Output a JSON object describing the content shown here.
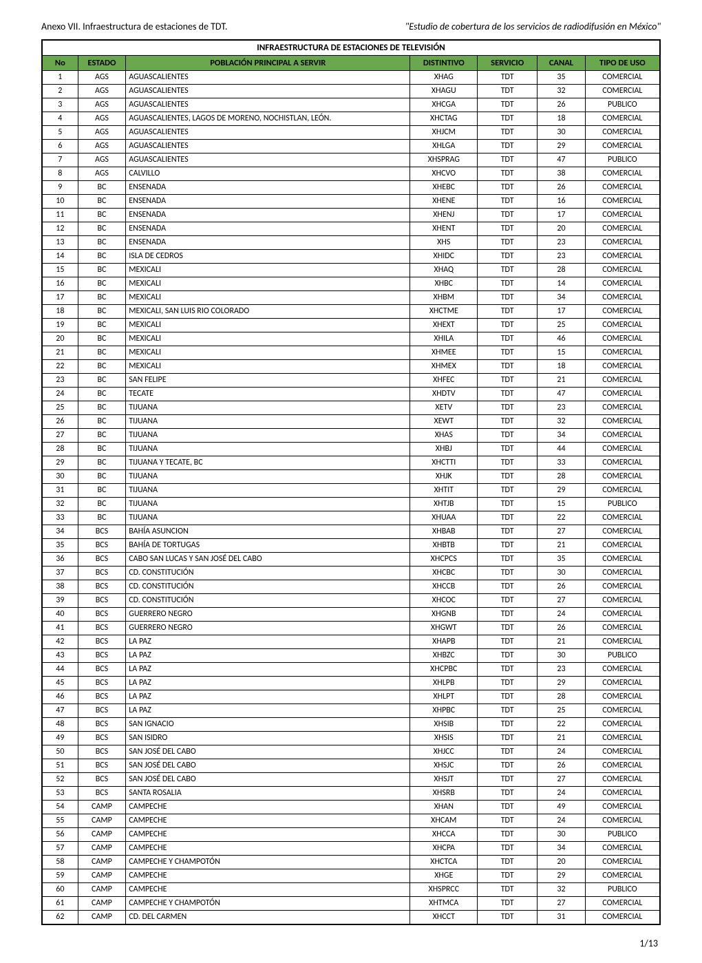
{
  "header": {
    "left": "Anexo VII. Infraestructura de estaciones de TDT.",
    "right": "\"Estudio de cobertura de los servicios de radiodifusión en México\""
  },
  "table": {
    "title": "INFRAESTRUCTURA DE ESTACIONES DE TELEVISIÓN",
    "columns": [
      "No",
      "ESTADO",
      "POBLACIÓN PRINCIPAL A SERVIR",
      "DISTINTIVO",
      "SERVICIO",
      "CANAL",
      "TIPO DE USO"
    ],
    "rows": [
      [
        "1",
        "AGS",
        "AGUASCALIENTES",
        "XHAG",
        "TDT",
        "35",
        "COMERCIAL"
      ],
      [
        "2",
        "AGS",
        "AGUASCALIENTES",
        "XHAGU",
        "TDT",
        "32",
        "COMERCIAL"
      ],
      [
        "3",
        "AGS",
        "AGUASCALIENTES",
        "XHCGA",
        "TDT",
        "26",
        "PUBLICO"
      ],
      [
        "4",
        "AGS",
        "AGUASCALIENTES, LAGOS DE MORENO, NOCHISTLAN, LEÓN.",
        "XHCTAG",
        "TDT",
        "18",
        "COMERCIAL"
      ],
      [
        "5",
        "AGS",
        "AGUASCALIENTES",
        "XHJCM",
        "TDT",
        "30",
        "COMERCIAL"
      ],
      [
        "6",
        "AGS",
        "AGUASCALIENTES",
        "XHLGA",
        "TDT",
        "29",
        "COMERCIAL"
      ],
      [
        "7",
        "AGS",
        "AGUASCALIENTES",
        "XHSPRAG",
        "TDT",
        "47",
        "PUBLICO"
      ],
      [
        "8",
        "AGS",
        "CALVILLO",
        "XHCVO",
        "TDT",
        "38",
        "COMERCIAL"
      ],
      [
        "9",
        "BC",
        "ENSENADA",
        "XHEBC",
        "TDT",
        "26",
        "COMERCIAL"
      ],
      [
        "10",
        "BC",
        "ENSENADA",
        "XHENE",
        "TDT",
        "16",
        "COMERCIAL"
      ],
      [
        "11",
        "BC",
        "ENSENADA",
        "XHENJ",
        "TDT",
        "17",
        "COMERCIAL"
      ],
      [
        "12",
        "BC",
        "ENSENADA",
        "XHENT",
        "TDT",
        "20",
        "COMERCIAL"
      ],
      [
        "13",
        "BC",
        "ENSENADA",
        "XHS",
        "TDT",
        "23",
        "COMERCIAL"
      ],
      [
        "14",
        "BC",
        "ISLA DE CEDROS",
        "XHIDC",
        "TDT",
        "23",
        "COMERCIAL"
      ],
      [
        "15",
        "BC",
        "MEXICALI",
        "XHAQ",
        "TDT",
        "28",
        "COMERCIAL"
      ],
      [
        "16",
        "BC",
        "MEXICALI",
        "XHBC",
        "TDT",
        "14",
        "COMERCIAL"
      ],
      [
        "17",
        "BC",
        "MEXICALI",
        "XHBM",
        "TDT",
        "34",
        "COMERCIAL"
      ],
      [
        "18",
        "BC",
        "MEXICALI, SAN LUIS RIO COLORADO",
        "XHCTME",
        "TDT",
        "17",
        "COMERCIAL"
      ],
      [
        "19",
        "BC",
        "MEXICALI",
        "XHEXT",
        "TDT",
        "25",
        "COMERCIAL"
      ],
      [
        "20",
        "BC",
        "MEXICALI",
        "XHILA",
        "TDT",
        "46",
        "COMERCIAL"
      ],
      [
        "21",
        "BC",
        "MEXICALI",
        "XHMEE",
        "TDT",
        "15",
        "COMERCIAL"
      ],
      [
        "22",
        "BC",
        "MEXICALI",
        "XHMEX",
        "TDT",
        "18",
        "COMERCIAL"
      ],
      [
        "23",
        "BC",
        "SAN FELIPE",
        "XHFEC",
        "TDT",
        "21",
        "COMERCIAL"
      ],
      [
        "24",
        "BC",
        "TECATE",
        "XHDTV",
        "TDT",
        "47",
        "COMERCIAL"
      ],
      [
        "25",
        "BC",
        "TIJUANA",
        "XETV",
        "TDT",
        "23",
        "COMERCIAL"
      ],
      [
        "26",
        "BC",
        "TIJUANA",
        "XEWT",
        "TDT",
        "32",
        "COMERCIAL"
      ],
      [
        "27",
        "BC",
        "TIJUANA",
        "XHAS",
        "TDT",
        "34",
        "COMERCIAL"
      ],
      [
        "28",
        "BC",
        "TIJUANA",
        "XHBJ",
        "TDT",
        "44",
        "COMERCIAL"
      ],
      [
        "29",
        "BC",
        "TIJUANA Y TECATE, BC",
        "XHCTTI",
        "TDT",
        "33",
        "COMERCIAL"
      ],
      [
        "30",
        "BC",
        "TIJUANA",
        "XHJK",
        "TDT",
        "28",
        "COMERCIAL"
      ],
      [
        "31",
        "BC",
        "TIJUANA",
        "XHTIT",
        "TDT",
        "29",
        "COMERCIAL"
      ],
      [
        "32",
        "BC",
        "TIJUANA",
        "XHTJB",
        "TDT",
        "15",
        "PUBLICO"
      ],
      [
        "33",
        "BC",
        "TIJUANA",
        "XHUAA",
        "TDT",
        "22",
        "COMERCIAL"
      ],
      [
        "34",
        "BCS",
        "BAHÍA ASUNCION",
        "XHBAB",
        "TDT",
        "27",
        "COMERCIAL"
      ],
      [
        "35",
        "BCS",
        "BAHÍA DE TORTUGAS",
        "XHBTB",
        "TDT",
        "21",
        "COMERCIAL"
      ],
      [
        "36",
        "BCS",
        "CABO SAN LUCAS Y SAN JOSÉ DEL CABO",
        "XHCPCS",
        "TDT",
        "35",
        "COMERCIAL"
      ],
      [
        "37",
        "BCS",
        "CD. CONSTITUCIÓN",
        "XHCBC",
        "TDT",
        "30",
        "COMERCIAL"
      ],
      [
        "38",
        "BCS",
        "CD. CONSTITUCIÓN",
        "XHCCB",
        "TDT",
        "26",
        "COMERCIAL"
      ],
      [
        "39",
        "BCS",
        "CD. CONSTITUCIÓN",
        "XHCOC",
        "TDT",
        "27",
        "COMERCIAL"
      ],
      [
        "40",
        "BCS",
        "GUERRERO NEGRO",
        "XHGNB",
        "TDT",
        "24",
        "COMERCIAL"
      ],
      [
        "41",
        "BCS",
        "GUERRERO NEGRO",
        "XHGWT",
        "TDT",
        "26",
        "COMERCIAL"
      ],
      [
        "42",
        "BCS",
        "LA PAZ",
        "XHAPB",
        "TDT",
        "21",
        "COMERCIAL"
      ],
      [
        "43",
        "BCS",
        "LA PAZ",
        "XHBZC",
        "TDT",
        "30",
        "PUBLICO"
      ],
      [
        "44",
        "BCS",
        "LA PAZ",
        "XHCPBC",
        "TDT",
        "23",
        "COMERCIAL"
      ],
      [
        "45",
        "BCS",
        "LA PAZ",
        "XHLPB",
        "TDT",
        "29",
        "COMERCIAL"
      ],
      [
        "46",
        "BCS",
        "LA PAZ",
        "XHLPT",
        "TDT",
        "28",
        "COMERCIAL"
      ],
      [
        "47",
        "BCS",
        "LA PAZ",
        "XHPBC",
        "TDT",
        "25",
        "COMERCIAL"
      ],
      [
        "48",
        "BCS",
        "SAN IGNACIO",
        "XHSIB",
        "TDT",
        "22",
        "COMERCIAL"
      ],
      [
        "49",
        "BCS",
        "SAN ISIDRO",
        "XHSIS",
        "TDT",
        "21",
        "COMERCIAL"
      ],
      [
        "50",
        "BCS",
        "SAN JOSÉ DEL CABO",
        "XHJCC",
        "TDT",
        "24",
        "COMERCIAL"
      ],
      [
        "51",
        "BCS",
        "SAN JOSÉ DEL CABO",
        "XHSJC",
        "TDT",
        "26",
        "COMERCIAL"
      ],
      [
        "52",
        "BCS",
        "SAN JOSÉ DEL CABO",
        "XHSJT",
        "TDT",
        "27",
        "COMERCIAL"
      ],
      [
        "53",
        "BCS",
        "SANTA ROSALIA",
        "XHSRB",
        "TDT",
        "24",
        "COMERCIAL"
      ],
      [
        "54",
        "CAMP",
        "CAMPECHE",
        "XHAN",
        "TDT",
        "49",
        "COMERCIAL"
      ],
      [
        "55",
        "CAMP",
        "CAMPECHE",
        "XHCAM",
        "TDT",
        "24",
        "COMERCIAL"
      ],
      [
        "56",
        "CAMP",
        "CAMPECHE",
        "XHCCA",
        "TDT",
        "30",
        "PUBLICO"
      ],
      [
        "57",
        "CAMP",
        "CAMPECHE",
        "XHCPA",
        "TDT",
        "34",
        "COMERCIAL"
      ],
      [
        "58",
        "CAMP",
        "CAMPECHE Y CHAMPOTÓN",
        "XHCTCA",
        "TDT",
        "20",
        "COMERCIAL"
      ],
      [
        "59",
        "CAMP",
        "CAMPECHE",
        "XHGE",
        "TDT",
        "29",
        "COMERCIAL"
      ],
      [
        "60",
        "CAMP",
        "CAMPECHE",
        "XHSPRCC",
        "TDT",
        "32",
        "PUBLICO"
      ],
      [
        "61",
        "CAMP",
        "CAMPECHE Y CHAMPOTÓN",
        "XHTMCA",
        "TDT",
        "27",
        "COMERCIAL"
      ],
      [
        "62",
        "CAMP",
        "CD. DEL CARMEN",
        "XHCCT",
        "TDT",
        "31",
        "COMERCIAL"
      ]
    ]
  },
  "pagenum": "1/13"
}
